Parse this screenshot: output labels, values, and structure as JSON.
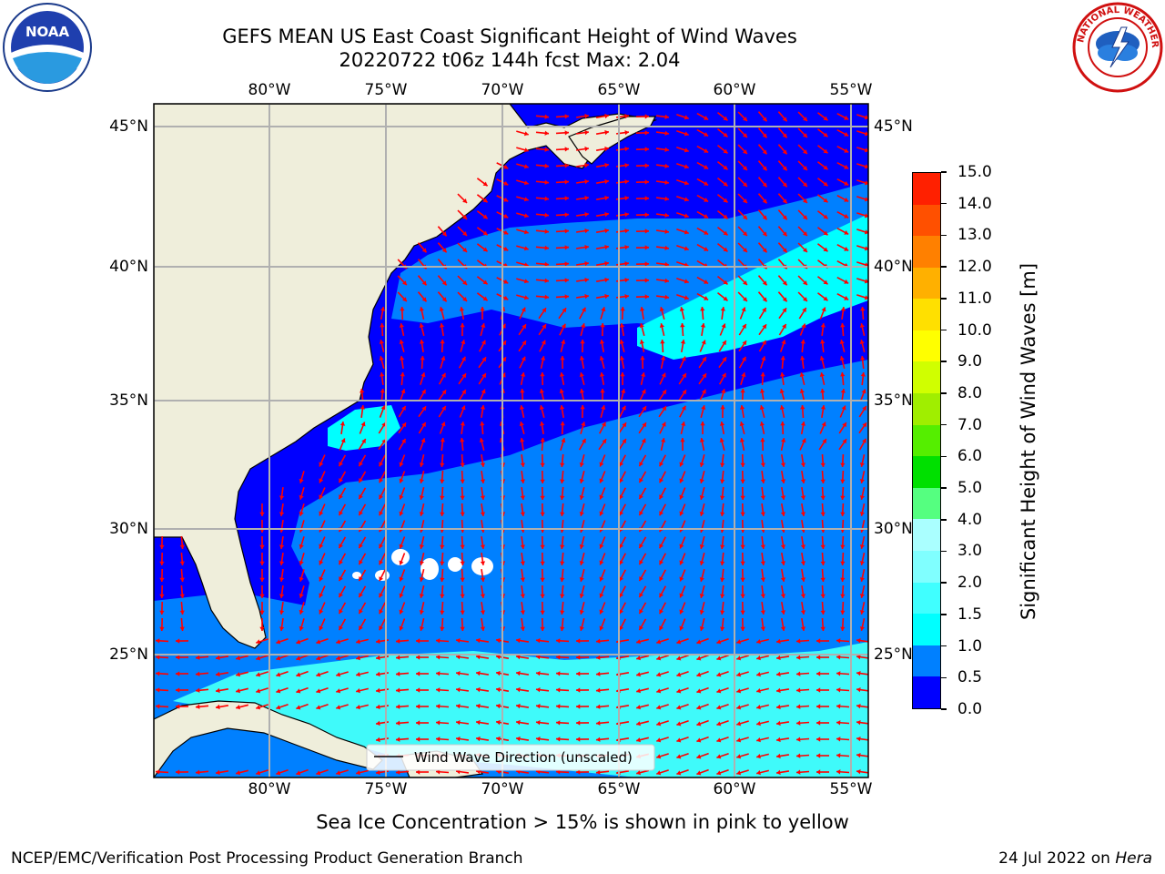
{
  "title": {
    "line1": "GEFS MEAN US East Coast Significant Height of Wind Waves",
    "line2": "20220722 t06z 144h fcst   Max: 2.04"
  },
  "map": {
    "lon_ticks": [
      "80°W",
      "75°W",
      "70°W",
      "65°W",
      "60°W",
      "55°W"
    ],
    "lat_ticks": [
      "45°N",
      "40°N",
      "35°N",
      "30°N",
      "25°N"
    ],
    "legend_label": "Wind Wave Direction (unscaled)",
    "colors": {
      "land": "#efeedb",
      "ocean_low": "#0000ff",
      "ocean_mid": "#0080ff",
      "ocean_high": "#00ffff",
      "ocean_higher": "#3ffafa",
      "arrow": "#ff0000",
      "grid": "#b0b0b0"
    }
  },
  "colorbar": {
    "label": "Significant Height of Wind Waves [m]",
    "ticks": [
      "0.0",
      "0.5",
      "1.0",
      "1.5",
      "2.0",
      "3.0",
      "4.0",
      "5.0",
      "6.0",
      "7.0",
      "8.0",
      "9.0",
      "10.0",
      "11.0",
      "12.0",
      "13.0",
      "14.0",
      "15.0"
    ],
    "colors": [
      "#0000ff",
      "#0080ff",
      "#00ffff",
      "#40ffff",
      "#80ffff",
      "#aaffff",
      "#55ff80",
      "#00e000",
      "#55ee00",
      "#a0ee00",
      "#d0ff00",
      "#ffff00",
      "#ffe000",
      "#ffb000",
      "#ff8000",
      "#ff5000",
      "#ff2000",
      "#ff0000"
    ]
  },
  "ice_note": "Sea Ice Concentration > 15% is shown in pink to yellow",
  "footer": {
    "left": "NCEP/EMC/Verification Post Processing Product Generation Branch",
    "date": "24 Jul 2022 on",
    "host": "Hera"
  },
  "logos": {
    "noaa_icon": "noaa-logo",
    "noaa_text": "NOAA",
    "nws_icon": "nws-logo",
    "nws_text": "NATIONAL WEATHER SERVICE"
  }
}
